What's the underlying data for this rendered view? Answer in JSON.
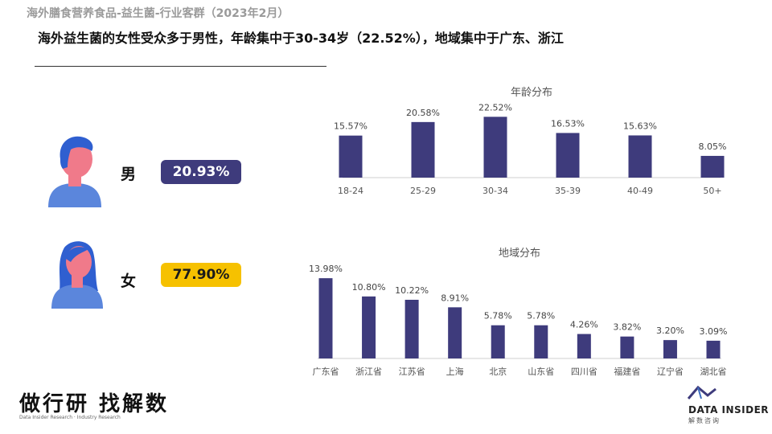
{
  "supertitle": "海外膳食营养食品-益生菌-行业客群（2023年2月）",
  "headline": "海外益生菌的女性受众多于男性，年龄集中于30-34岁（22.52%），地域集中于广东、浙江",
  "gender": {
    "male": {
      "label": "男",
      "value": "20.93%",
      "color": "#3e3b7c"
    },
    "female": {
      "label": "女",
      "value": "77.90%",
      "color": "#f6c100"
    }
  },
  "chart_data": [
    {
      "type": "bar",
      "title": "年龄分布",
      "categories": [
        "18-24",
        "25-29",
        "30-34",
        "35-39",
        "40-49",
        "50+"
      ],
      "values": [
        15.57,
        20.58,
        22.52,
        16.53,
        15.63,
        8.05
      ],
      "value_labels": [
        "15.57%",
        "20.58%",
        "22.52%",
        "16.53%",
        "15.63%",
        "8.05%"
      ],
      "ylim": [
        0,
        25
      ],
      "bar_color": "#3e3b7c"
    },
    {
      "type": "bar",
      "title": "地域分布",
      "categories": [
        "广东省",
        "浙江省",
        "江苏省",
        "上海",
        "北京",
        "山东省",
        "四川省",
        "福建省",
        "辽宁省",
        "湖北省"
      ],
      "values": [
        13.98,
        10.8,
        10.22,
        8.91,
        5.78,
        5.78,
        4.26,
        3.82,
        3.2,
        3.09
      ],
      "value_labels": [
        "13.98%",
        "10.80%",
        "10.22%",
        "8.91%",
        "5.78%",
        "5.78%",
        "4.26%",
        "3.82%",
        "3.20%",
        "3.09%"
      ],
      "ylim": [
        0,
        14
      ],
      "bar_color": "#3e3b7c"
    }
  ],
  "footer": {
    "brand": "做行研 找解数",
    "sub": "Data Insider Research · Industry Research",
    "logo_text": "DATA INSIDER",
    "logo_sub": "解数咨询"
  }
}
